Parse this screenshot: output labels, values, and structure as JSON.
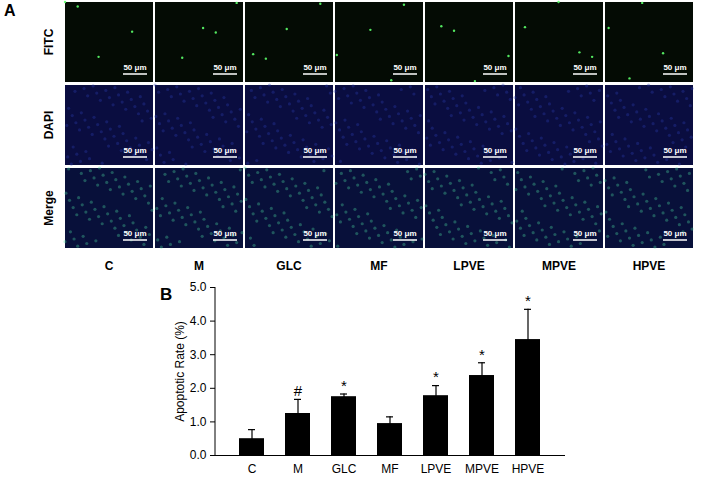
{
  "panel_a": {
    "panel_label": "A",
    "rows": [
      "FITC",
      "DAPI",
      "Merge"
    ],
    "columns": [
      "C",
      "M",
      "GLC",
      "MF",
      "LPVE",
      "MPVE",
      "HPVE"
    ],
    "scale_bar": "50 μm"
  },
  "chart_data": {
    "type": "bar",
    "panel_label": "B",
    "ylabel": "Apoptotic Rate (%)",
    "categories": [
      "C",
      "M",
      "GLC",
      "MF",
      "LPVE",
      "MPVE",
      "HPVE"
    ],
    "values": [
      0.5,
      1.25,
      1.75,
      0.95,
      1.78,
      2.38,
      3.45
    ],
    "errors": [
      0.27,
      0.42,
      0.08,
      0.2,
      0.3,
      0.38,
      0.9
    ],
    "annotations": [
      null,
      "#",
      "*",
      null,
      "*",
      "*",
      "*"
    ],
    "color": "#000000",
    "ylim": [
      0,
      5
    ],
    "yticks": [
      0,
      1,
      2,
      3,
      4,
      5
    ],
    "grid": false
  }
}
